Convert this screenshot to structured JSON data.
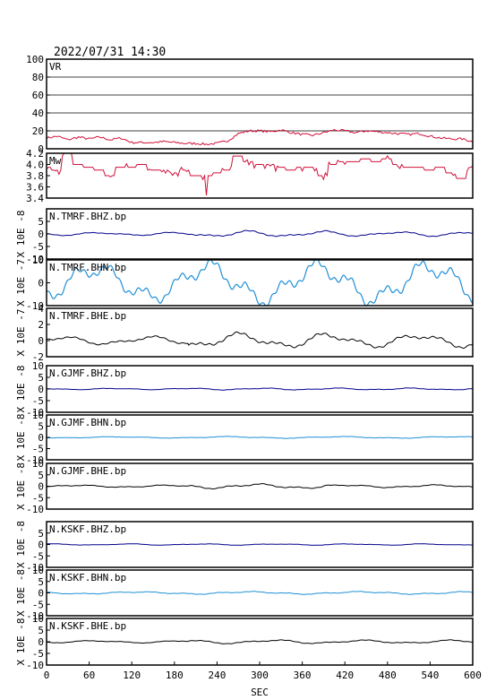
{
  "header": {
    "timestamp": "2022/07/31  14:30"
  },
  "chart_data": {
    "type": "line",
    "xlabel": "SEC",
    "xlim": [
      0,
      600
    ],
    "xticks": [
      "0",
      "60",
      "120",
      "180",
      "240",
      "300",
      "360",
      "420",
      "480",
      "540",
      "600"
    ],
    "panels": [
      {
        "label": "VR",
        "color": "#d0103a",
        "ylim": [
          0,
          100
        ],
        "yticks": [
          "100",
          "80",
          "60",
          "40",
          "20",
          "0"
        ],
        "grid": true,
        "x": [
          0,
          15,
          30,
          45,
          60,
          75,
          90,
          105,
          120,
          135,
          150,
          165,
          180,
          195,
          210,
          225,
          240,
          255,
          270,
          285,
          300,
          315,
          330,
          345,
          360,
          375,
          390,
          405,
          420,
          435,
          450,
          465,
          480,
          495,
          510,
          525,
          540,
          555,
          570,
          585,
          600
        ],
        "values": [
          12,
          14,
          10,
          13,
          11,
          13,
          10,
          12,
          7,
          7,
          7,
          8,
          7,
          6,
          6,
          5,
          6,
          9,
          17,
          20,
          20,
          19,
          21,
          18,
          16,
          15,
          18,
          21,
          20,
          18,
          20,
          19,
          18,
          17,
          16,
          17,
          14,
          12,
          11,
          11,
          8
        ]
      },
      {
        "label": "Mw",
        "color": "#d0103a",
        "ylim": [
          3.4,
          4.2
        ],
        "yticks": [
          "4.2",
          "4.0",
          "3.8",
          "3.6",
          "3.4"
        ],
        "x": [
          0,
          15,
          30,
          45,
          60,
          75,
          90,
          105,
          120,
          135,
          150,
          165,
          180,
          195,
          210,
          222,
          225,
          228,
          240,
          255,
          270,
          285,
          300,
          315,
          330,
          345,
          360,
          375,
          390,
          405,
          420,
          435,
          450,
          465,
          480,
          495,
          510,
          525,
          540,
          555,
          570,
          585,
          600
        ],
        "values": [
          3.95,
          3.9,
          4.2,
          4.0,
          3.95,
          3.9,
          3.8,
          3.95,
          3.95,
          4.0,
          3.9,
          3.9,
          3.85,
          3.9,
          3.8,
          3.8,
          3.45,
          3.8,
          3.85,
          3.9,
          4.15,
          4.05,
          4.0,
          4.0,
          3.95,
          3.9,
          3.95,
          3.95,
          3.8,
          4.0,
          4.05,
          4.05,
          4.1,
          4.05,
          4.1,
          4.0,
          3.95,
          3.95,
          3.9,
          3.95,
          3.85,
          3.75,
          3.95
        ]
      },
      {
        "label": "N.TMRF.BHZ.bp",
        "color": "#00008b",
        "ylabel": "X 10E -8",
        "ylim": [
          -10,
          10
        ],
        "yticks": [
          "5",
          "0",
          "-5",
          "-10"
        ],
        "amplitude": [
          0.6,
          1.2,
          0.9
        ]
      },
      {
        "label": "N.TMRF.BHN.bp",
        "color": "#1e8fd6",
        "ylabel": "X 10E -7",
        "ylim": [
          -10,
          10
        ],
        "yticks": [
          "10",
          "0",
          "-10"
        ],
        "amplitude": [
          8,
          9,
          9
        ]
      },
      {
        "label": "N.TMRF.BHE.bp",
        "color": "#000000",
        "ylabel": "X 10E -7",
        "ylim": [
          -2,
          4
        ],
        "yticks": [
          "4",
          "2",
          "0",
          "-2"
        ],
        "amplitude": [
          0.5,
          0.9,
          0.8
        ]
      },
      {
        "label": "N.GJMF.BHZ.bp",
        "color": "#00008b",
        "ylabel": "X 10E -8",
        "ylim": [
          -10,
          10
        ],
        "yticks": [
          "10",
          "5",
          "0",
          "-5",
          "-10"
        ],
        "amplitude": [
          0.3,
          0.4,
          0.4
        ]
      },
      {
        "label": "N.GJMF.BHN.bp",
        "color": "#1e8fd6",
        "ylabel": "X 10E -8",
        "ylim": [
          -10,
          10
        ],
        "yticks": [
          "10",
          "5",
          "0",
          "-5",
          "-10"
        ],
        "amplitude": [
          0.3,
          0.4,
          0.4
        ]
      },
      {
        "label": "N.GJMF.BHE.bp",
        "color": "#000000",
        "ylabel": "X 10E -8",
        "ylim": [
          -10,
          10
        ],
        "yticks": [
          "10",
          "5",
          "0",
          "-5",
          "-10"
        ],
        "amplitude": [
          0.5,
          1.0,
          0.6
        ]
      },
      {
        "label": "N.KSKF.BHZ.bp",
        "color": "#00008b",
        "ylabel": "X 10E -8",
        "ylim": [
          -10,
          10
        ],
        "yticks": [
          "5",
          "0",
          "-5",
          "-10"
        ],
        "amplitude": [
          0.3,
          0.3,
          0.3
        ]
      },
      {
        "label": "N.KSKF.BHN.bp",
        "color": "#1e8fd6",
        "ylabel": "X 10E -8",
        "ylim": [
          -10,
          10
        ],
        "yticks": [
          "10",
          "5",
          "0",
          "-5",
          "-10"
        ],
        "amplitude": [
          0.5,
          0.6,
          0.6
        ]
      },
      {
        "label": "N.KSKF.BHE.bp",
        "color": "#000000",
        "ylabel": "X 10E -8",
        "ylim": [
          -10,
          10
        ],
        "yticks": [
          "10",
          "5",
          "0",
          "-5",
          "-10"
        ],
        "amplitude": [
          0.5,
          0.8,
          0.7
        ]
      }
    ]
  }
}
